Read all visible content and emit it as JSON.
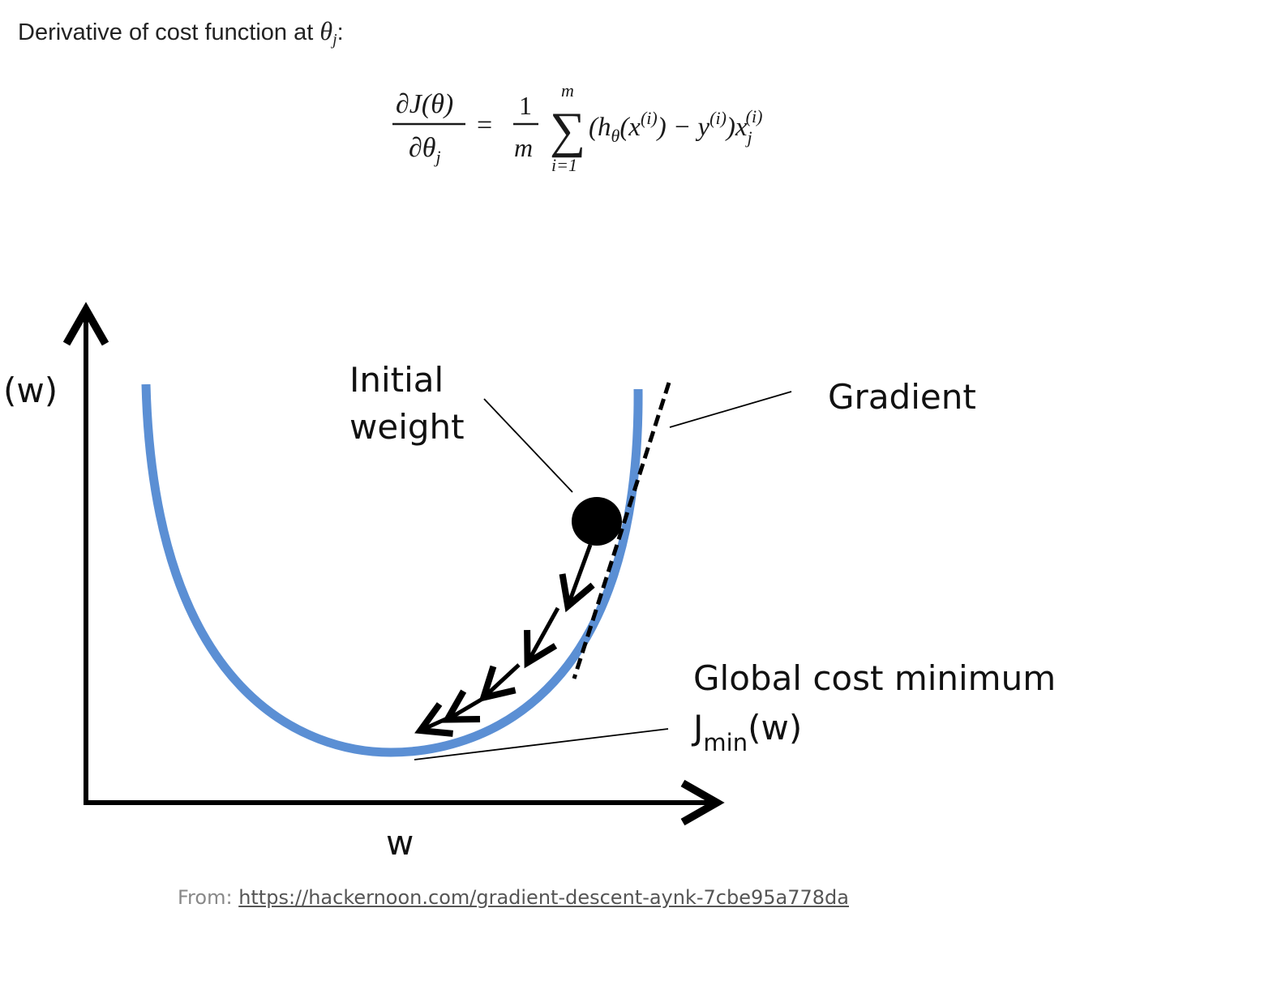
{
  "header": {
    "prefix": "Derivative of cost function at ",
    "theta": "θ",
    "theta_sub": "j",
    "suffix": ":"
  },
  "formula": {
    "lhs_num": "∂J(θ)",
    "lhs_den_partial": "∂θ",
    "lhs_den_sub": "j",
    "equals": "=",
    "coef_num": "1",
    "coef_den": "m",
    "sum_symbol": "∑",
    "sum_upper": "m",
    "sum_lower": "i=1",
    "term_open": "(h",
    "term_h_sub": "θ",
    "term_x": "(x",
    "term_x_sup": "(i)",
    "term_minus": ") − y",
    "term_y_sup": "(i)",
    "term_close": ")x",
    "term_xj_sub": "j",
    "term_xj_sup": "(i)"
  },
  "diagram": {
    "y_axis_label": "(w)",
    "x_axis_label": "w",
    "initial_weight_line1": "Initial",
    "initial_weight_line2": "weight",
    "gradient_label": "Gradient",
    "global_min_label": "Global cost minimum",
    "jmin_prefix": "J",
    "jmin_sub": "min",
    "jmin_suffix": "(w)",
    "colors": {
      "curve": "#5b8fd4",
      "axis": "#000000",
      "ball": "#000000"
    }
  },
  "source": {
    "prefix": "From: ",
    "link_text": "https://hackernoon.com/gradient-descent-aynk-7cbe95a778da"
  }
}
